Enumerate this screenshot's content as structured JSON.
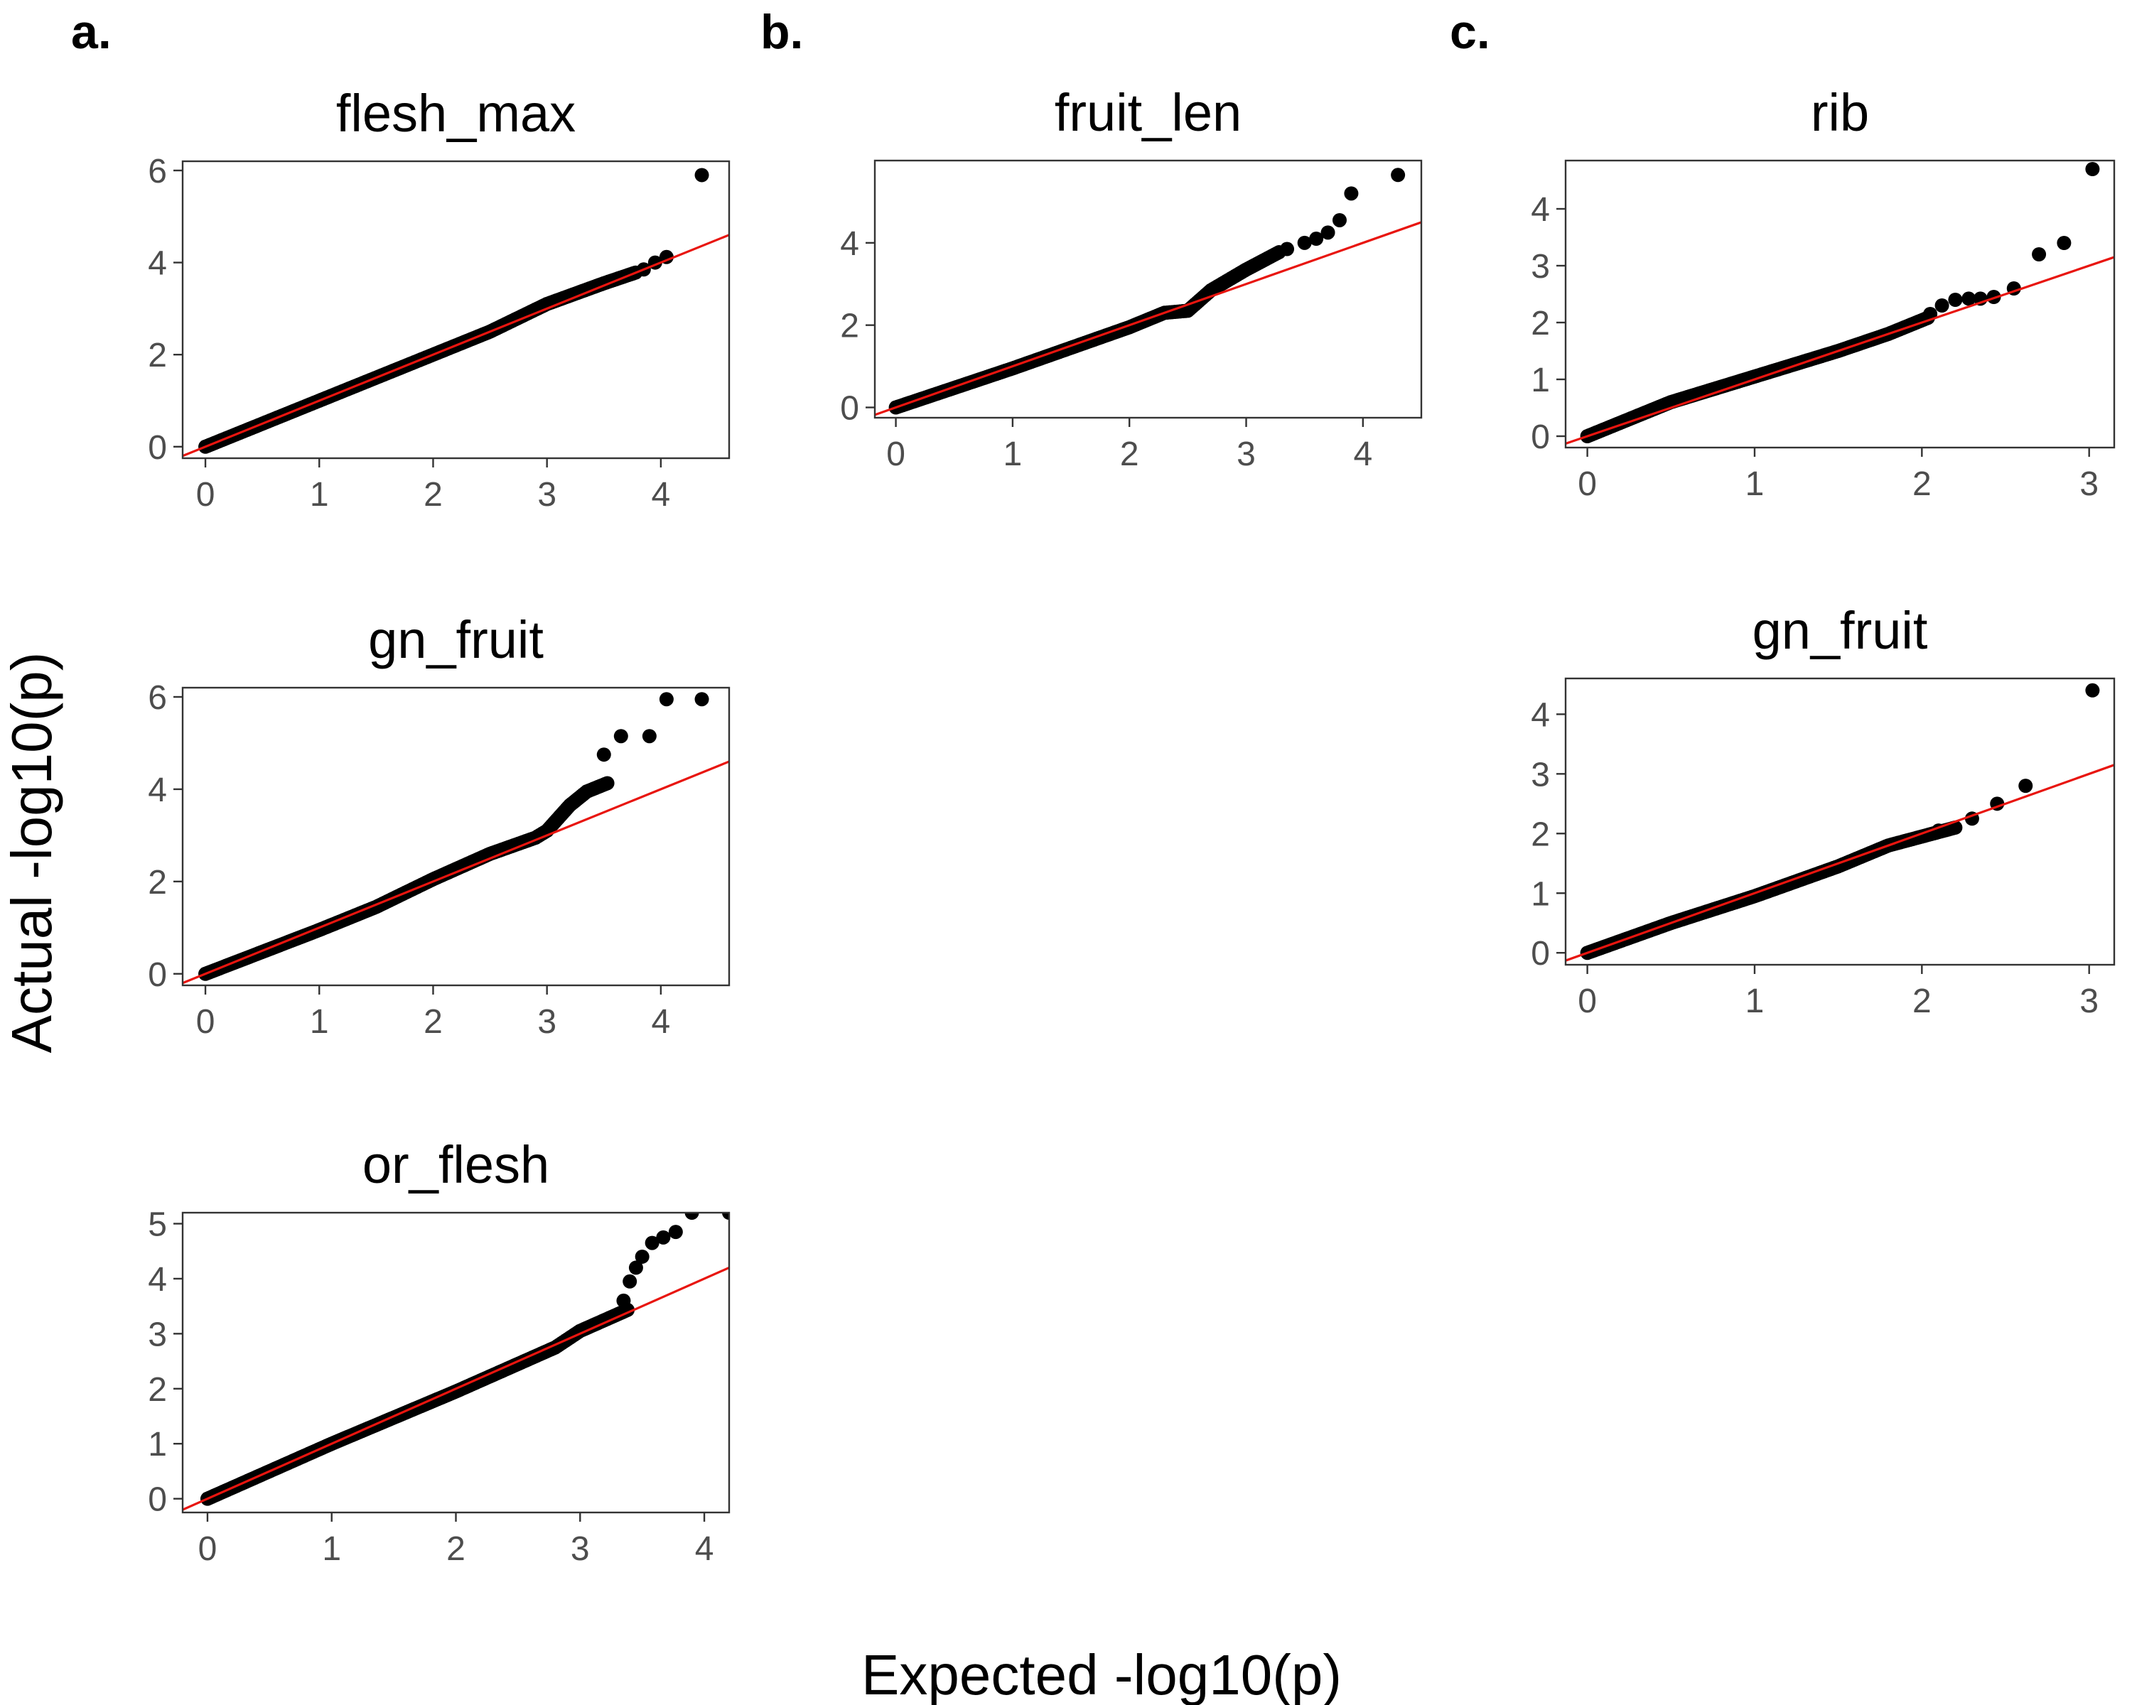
{
  "figure": {
    "panel_letters": [
      "a.",
      "b.",
      "c."
    ],
    "xlabel": "Expected -log10(p)",
    "ylabel": "Actual -log10(p)",
    "point_color": "#000000",
    "reference_line_color": "#e8150f"
  },
  "chart_data": [
    {
      "type": "scatter",
      "panel": "a.",
      "title": "flesh_max",
      "xlim": [
        -0.2,
        4.6
      ],
      "ylim": [
        -0.25,
        6.2
      ],
      "xticks": [
        0,
        1,
        2,
        3,
        4
      ],
      "yticks": [
        0,
        2,
        4,
        6
      ],
      "reference_line": {
        "slope": 1,
        "intercept": 0
      },
      "dense_curve": [
        [
          0,
          0
        ],
        [
          1,
          1
        ],
        [
          2,
          2
        ],
        [
          2.5,
          2.5
        ],
        [
          3,
          3.1
        ],
        [
          3.5,
          3.55
        ],
        [
          3.8,
          3.8
        ]
      ],
      "points": [
        [
          3.85,
          3.85
        ],
        [
          3.95,
          4.0
        ],
        [
          4.05,
          4.12
        ],
        [
          4.36,
          5.9
        ]
      ]
    },
    {
      "type": "scatter",
      "panel": "a.",
      "title": "gn_fruit",
      "xlim": [
        -0.2,
        4.6
      ],
      "ylim": [
        -0.25,
        6.2
      ],
      "xticks": [
        0,
        1,
        2,
        3,
        4
      ],
      "yticks": [
        0,
        2,
        4,
        6
      ],
      "reference_line": {
        "slope": 1,
        "intercept": 0
      },
      "dense_curve": [
        [
          0,
          0
        ],
        [
          1,
          0.95
        ],
        [
          1.5,
          1.45
        ],
        [
          2,
          2.05
        ],
        [
          2.5,
          2.6
        ],
        [
          2.9,
          2.95
        ],
        [
          3.0,
          3.1
        ],
        [
          3.2,
          3.65
        ],
        [
          3.35,
          3.95
        ],
        [
          3.55,
          4.15
        ]
      ],
      "points": [
        [
          3.5,
          4.75
        ],
        [
          3.65,
          5.15
        ],
        [
          3.9,
          5.15
        ],
        [
          4.05,
          5.95
        ],
        [
          4.36,
          5.95
        ]
      ]
    },
    {
      "type": "scatter",
      "panel": "a.",
      "title": "or_flesh",
      "xlim": [
        -0.2,
        4.2
      ],
      "ylim": [
        -0.25,
        5.2
      ],
      "xticks": [
        0,
        1,
        2,
        3,
        4
      ],
      "yticks": [
        0,
        1,
        2,
        3,
        4,
        5
      ],
      "reference_line": {
        "slope": 1,
        "intercept": 0
      },
      "dense_curve": [
        [
          0,
          0
        ],
        [
          1,
          1
        ],
        [
          2,
          1.95
        ],
        [
          2.8,
          2.75
        ],
        [
          3.0,
          3.05
        ],
        [
          3.2,
          3.25
        ],
        [
          3.4,
          3.45
        ]
      ],
      "points": [
        [
          3.35,
          3.6
        ],
        [
          3.4,
          3.95
        ],
        [
          3.45,
          4.2
        ],
        [
          3.5,
          4.4
        ],
        [
          3.58,
          4.65
        ],
        [
          3.67,
          4.75
        ],
        [
          3.77,
          4.85
        ],
        [
          3.9,
          5.2
        ],
        [
          4.2,
          5.2
        ]
      ]
    },
    {
      "type": "scatter",
      "panel": "b.",
      "title": "fruit_len",
      "xlim": [
        -0.18,
        4.5
      ],
      "ylim": [
        -0.25,
        6.0
      ],
      "xticks": [
        0,
        1,
        2,
        3,
        4
      ],
      "yticks": [
        0,
        2,
        4
      ],
      "reference_line": {
        "slope": 1,
        "intercept": 0
      },
      "dense_curve": [
        [
          0,
          0
        ],
        [
          1,
          0.95
        ],
        [
          2,
          1.95
        ],
        [
          2.3,
          2.3
        ],
        [
          2.5,
          2.35
        ],
        [
          2.7,
          2.85
        ],
        [
          3.0,
          3.35
        ],
        [
          3.3,
          3.8
        ]
      ],
      "points": [
        [
          3.35,
          3.85
        ],
        [
          3.5,
          4.0
        ],
        [
          3.6,
          4.1
        ],
        [
          3.7,
          4.25
        ],
        [
          3.8,
          4.55
        ],
        [
          3.9,
          5.2
        ],
        [
          4.3,
          5.65
        ]
      ]
    },
    {
      "type": "scatter",
      "panel": "c.",
      "title": "rib",
      "xlim": [
        -0.13,
        3.15
      ],
      "ylim": [
        -0.2,
        4.85
      ],
      "xticks": [
        0,
        1,
        2,
        3
      ],
      "yticks": [
        0,
        1,
        2,
        3,
        4
      ],
      "reference_line": {
        "slope": 1,
        "intercept": 0
      },
      "dense_curve": [
        [
          0,
          0
        ],
        [
          0.5,
          0.6
        ],
        [
          1,
          1.05
        ],
        [
          1.5,
          1.5
        ],
        [
          1.8,
          1.8
        ],
        [
          2.05,
          2.1
        ]
      ],
      "points": [
        [
          2.05,
          2.15
        ],
        [
          2.12,
          2.3
        ],
        [
          2.2,
          2.4
        ],
        [
          2.28,
          2.42
        ],
        [
          2.35,
          2.42
        ],
        [
          2.43,
          2.45
        ],
        [
          2.55,
          2.6
        ],
        [
          2.7,
          3.2
        ],
        [
          2.85,
          3.4
        ],
        [
          3.02,
          4.7
        ]
      ]
    },
    {
      "type": "scatter",
      "panel": "c.",
      "title": "gn_fruit",
      "xlim": [
        -0.13,
        3.15
      ],
      "ylim": [
        -0.2,
        4.6
      ],
      "xticks": [
        0,
        1,
        2,
        3
      ],
      "yticks": [
        0,
        1,
        2,
        3,
        4
      ],
      "reference_line": {
        "slope": 1,
        "intercept": 0
      },
      "dense_curve": [
        [
          0,
          0
        ],
        [
          0.5,
          0.5
        ],
        [
          1,
          0.95
        ],
        [
          1.5,
          1.45
        ],
        [
          1.8,
          1.8
        ],
        [
          2.0,
          1.95
        ],
        [
          2.2,
          2.1
        ]
      ],
      "points": [
        [
          2.1,
          2.05
        ],
        [
          2.2,
          2.1
        ],
        [
          2.3,
          2.25
        ],
        [
          2.45,
          2.5
        ],
        [
          2.62,
          2.8
        ],
        [
          3.02,
          4.4
        ]
      ]
    }
  ]
}
